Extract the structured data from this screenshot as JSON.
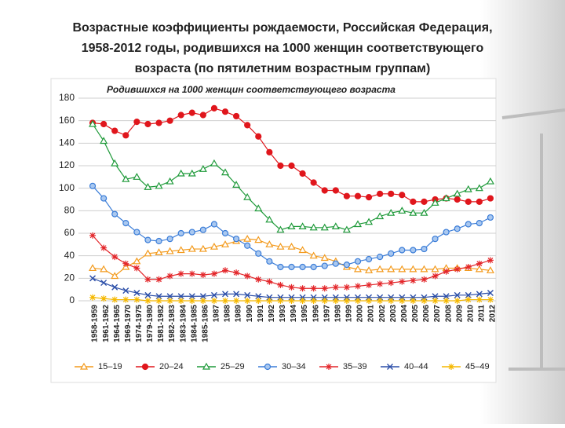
{
  "title_lines": [
    "Возрастные коэффициенты рождаемости, Российская Федерация,",
    "1958-2012 годы, родившихся на 1000 женщин соответствующего",
    "возраста (по пятилетним возрастным группам)"
  ],
  "chart_data": {
    "type": "line",
    "title": "Родившихся на 1000 женщин соответствующего возраста",
    "categories": [
      "1958-1959",
      "1961-1962",
      "1964-1965",
      "1969-1970",
      "1974-1975",
      "1979-1980",
      "1981-1982",
      "1982-1983",
      "1983-1984",
      "1984-1985",
      "1985-1986",
      "1987",
      "1988",
      "1989",
      "1990",
      "1991",
      "1992",
      "1993",
      "1994",
      "1995",
      "1996",
      "1997",
      "1998",
      "1999",
      "2000",
      "2001",
      "2002",
      "2003",
      "2004",
      "2005",
      "2006",
      "2007",
      "2008",
      "2009",
      "2010",
      "2011",
      "2012"
    ],
    "ylim": [
      0,
      180
    ],
    "yticks": [
      0,
      20,
      40,
      60,
      80,
      100,
      120,
      140,
      160,
      180
    ],
    "grid": true,
    "legend": "bottom",
    "series": [
      {
        "name": "15–19",
        "color": "#f39a1c",
        "marker": "triangle",
        "values": [
          29,
          28,
          22,
          30,
          35,
          42,
          43,
          44,
          45,
          46,
          46,
          48,
          50,
          53,
          55,
          54,
          50,
          48,
          48,
          45,
          40,
          38,
          35,
          30,
          28,
          27,
          28,
          28,
          28,
          28,
          28,
          28,
          29,
          29,
          29,
          28,
          27
        ]
      },
      {
        "name": "20–24",
        "color": "#e0161c",
        "marker": "circle",
        "values": [
          158,
          157,
          151,
          147,
          159,
          157,
          158,
          160,
          165,
          167,
          165,
          171,
          168,
          164,
          156,
          146,
          132,
          120,
          120,
          113,
          105,
          98,
          98,
          93,
          93,
          92,
          95,
          95,
          94,
          88,
          88,
          90,
          91,
          90,
          88,
          88,
          91
        ]
      },
      {
        "name": "25–29",
        "color": "#1f9a3a",
        "marker": "triangle",
        "values": [
          157,
          142,
          122,
          108,
          110,
          101,
          102,
          106,
          113,
          113,
          117,
          122,
          114,
          103,
          92,
          82,
          72,
          63,
          66,
          66,
          65,
          65,
          66,
          63,
          68,
          70,
          75,
          78,
          80,
          78,
          78,
          87,
          91,
          95,
          99,
          100,
          106
        ]
      },
      {
        "name": "30–34",
        "color": "#3b7dd8",
        "marker": "circle",
        "values": [
          102,
          91,
          77,
          69,
          61,
          54,
          53,
          55,
          60,
          61,
          63,
          68,
          60,
          55,
          49,
          42,
          35,
          30,
          30,
          30,
          30,
          31,
          33,
          32,
          35,
          37,
          39,
          42,
          45,
          45,
          46,
          55,
          61,
          64,
          68,
          69,
          74
        ]
      },
      {
        "name": "35–39",
        "color": "#e3262a",
        "marker": "star",
        "values": [
          58,
          47,
          39,
          33,
          29,
          19,
          19,
          22,
          24,
          24,
          23,
          24,
          27,
          25,
          22,
          19,
          17,
          14,
          12,
          11,
          11,
          11,
          12,
          12,
          13,
          14,
          15,
          16,
          17,
          18,
          19,
          22,
          26,
          28,
          30,
          33,
          36
        ]
      },
      {
        "name": "40–44",
        "color": "#2b4ea8",
        "marker": "cross",
        "values": [
          20,
          16,
          12,
          9,
          7,
          5,
          4,
          4,
          4,
          4,
          4,
          5,
          6,
          6,
          5,
          4,
          3,
          3,
          3,
          3,
          3,
          3,
          3,
          3,
          3,
          3,
          3,
          3,
          3,
          3,
          3,
          4,
          4,
          5,
          5,
          6,
          7
        ]
      },
      {
        "name": "45–49",
        "color": "#f5b800",
        "marker": "star",
        "values": [
          3,
          2,
          1,
          1,
          1,
          0,
          0,
          0,
          0,
          0,
          0,
          0,
          0,
          0,
          0,
          0,
          0,
          0,
          0,
          0,
          0,
          0,
          0,
          0,
          0,
          0,
          0,
          0,
          0,
          0,
          0,
          0,
          0,
          0,
          1,
          1,
          1
        ]
      }
    ]
  }
}
